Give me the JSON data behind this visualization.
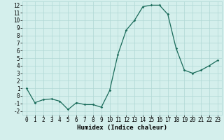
{
  "x": [
    0,
    1,
    2,
    3,
    4,
    5,
    6,
    7,
    8,
    9,
    10,
    11,
    12,
    13,
    14,
    15,
    16,
    17,
    18,
    19,
    20,
    21,
    22,
    23
  ],
  "y": [
    1,
    -0.9,
    -0.5,
    -0.4,
    -0.7,
    -1.8,
    -0.9,
    -1.15,
    -1.15,
    -1.5,
    0.7,
    5.5,
    8.7,
    10.0,
    11.8,
    12.0,
    12.0,
    10.8,
    6.3,
    3.4,
    3.0,
    3.4,
    4.0,
    4.7
  ],
  "line_color": "#1a6b5a",
  "marker": "D",
  "marker_size": 1.8,
  "bg_color": "#d4efec",
  "grid_color": "#b0d8d4",
  "xlabel": "Humidex (Indice chaleur)",
  "xlim": [
    -0.5,
    23.5
  ],
  "ylim": [
    -2.5,
    12.5
  ],
  "yticks": [
    -2,
    -1,
    0,
    1,
    2,
    3,
    4,
    5,
    6,
    7,
    8,
    9,
    10,
    11,
    12
  ],
  "xticks": [
    0,
    1,
    2,
    3,
    4,
    5,
    6,
    7,
    8,
    9,
    10,
    11,
    12,
    13,
    14,
    15,
    16,
    17,
    18,
    19,
    20,
    21,
    22,
    23
  ],
  "xlabel_fontsize": 6.5,
  "tick_fontsize": 5.5,
  "linewidth": 0.9
}
